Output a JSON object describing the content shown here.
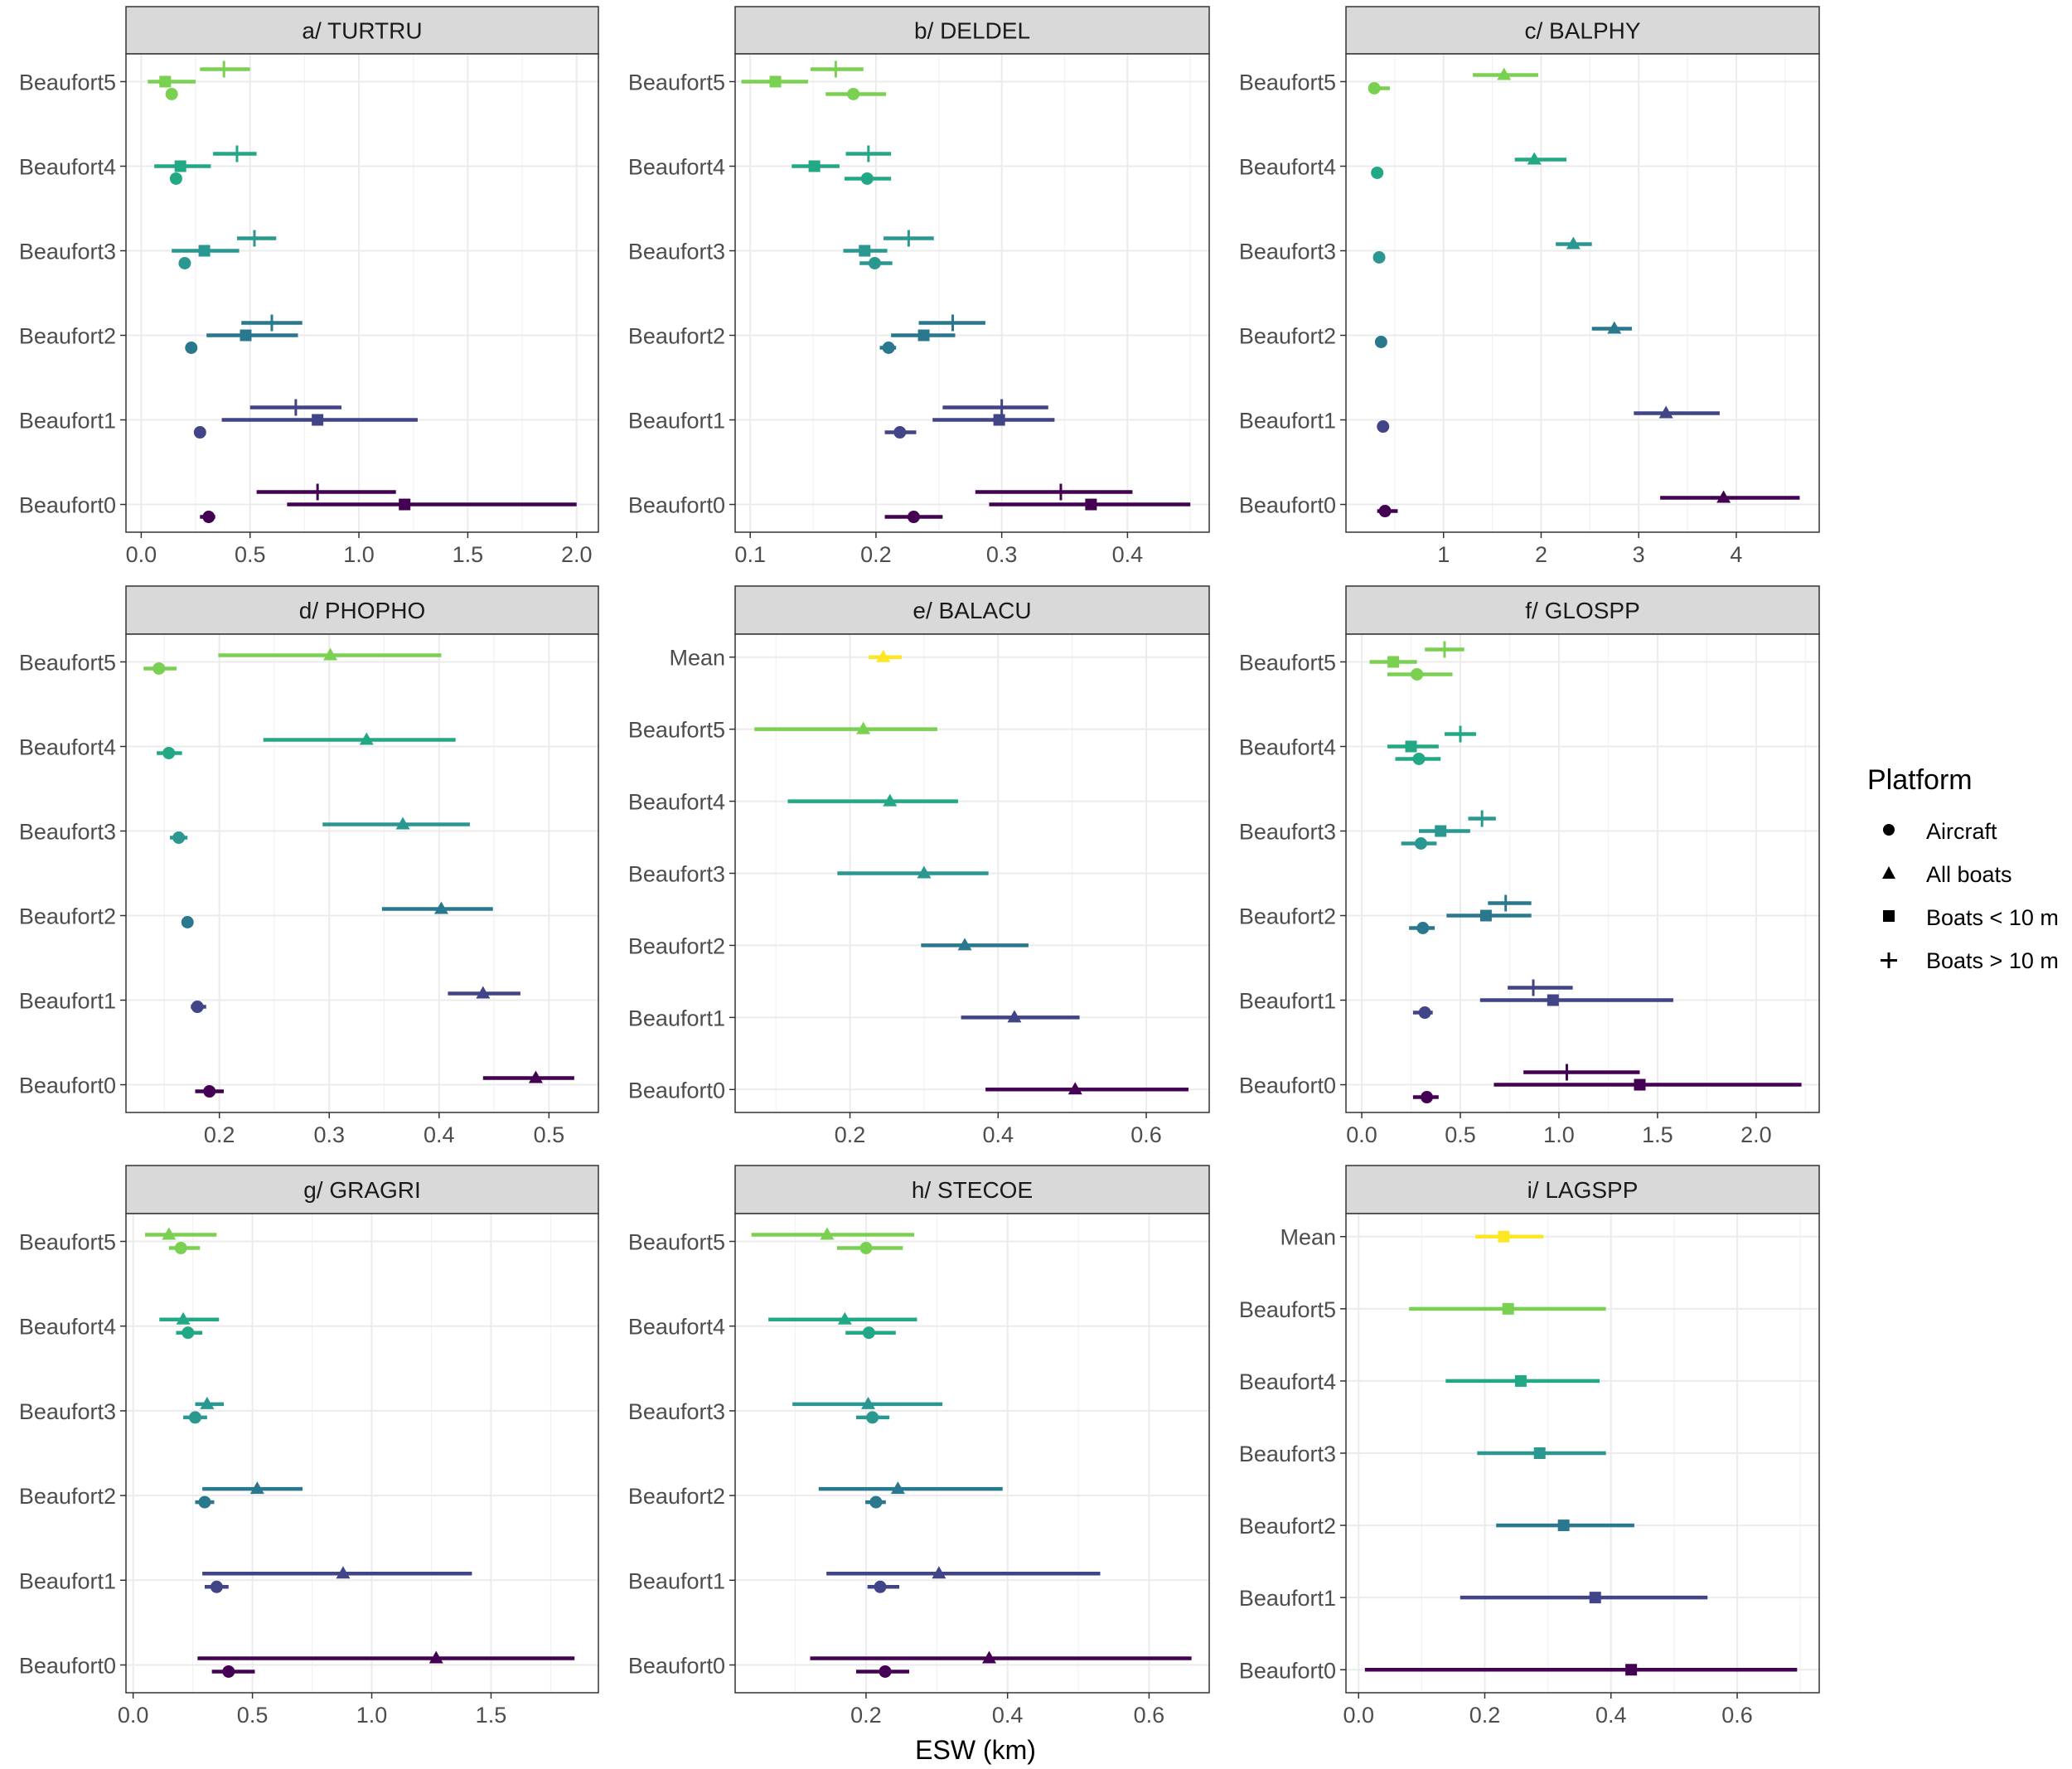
{
  "figure": {
    "xlabel": "ESW (km)",
    "legend": {
      "title": "Platform",
      "entries": [
        {
          "label": "Aircraft",
          "shape": "circle"
        },
        {
          "label": "All boats",
          "shape": "triangle"
        },
        {
          "label": "Boats < 10 m",
          "shape": "square"
        },
        {
          "label": "Boats > 10 m",
          "shape": "plus"
        }
      ]
    },
    "colors": {
      "Mean": "#FDE725",
      "Beaufort5": "#7AD151",
      "Beaufort4": "#22A884",
      "Beaufort3": "#2A9890",
      "Beaufort2": "#2A788E",
      "Beaufort1": "#414487",
      "Beaufort0": "#440154",
      "panel_strip": "#D9D9D9",
      "grid": "#EBEBEB"
    }
  },
  "chart_data": [
    {
      "title": "a/ TURTRU",
      "type": "scatter",
      "categories": [
        "Beaufort5",
        "Beaufort4",
        "Beaufort3",
        "Beaufort2",
        "Beaufort1",
        "Beaufort0"
      ],
      "xlim": [
        -0.07,
        2.1
      ],
      "xticks": [
        0,
        0.5,
        1,
        1.5,
        2
      ],
      "xtick_labels": [
        "0.0",
        "0.5",
        "1.0",
        "1.5",
        "2.0"
      ],
      "series": [
        {
          "name": "Boats > 10 m",
          "values": [
            [
              0.38,
              0.27,
              0.5
            ],
            [
              0.44,
              0.33,
              0.53
            ],
            [
              0.52,
              0.44,
              0.62
            ],
            [
              0.6,
              0.46,
              0.74
            ],
            [
              0.71,
              0.5,
              0.92
            ],
            [
              0.81,
              0.53,
              1.17
            ]
          ]
        },
        {
          "name": "Boats < 10 m",
          "values": [
            [
              0.11,
              0.03,
              0.25
            ],
            [
              0.18,
              0.06,
              0.32
            ],
            [
              0.29,
              0.14,
              0.45
            ],
            [
              0.48,
              0.3,
              0.72
            ],
            [
              0.81,
              0.37,
              1.27
            ],
            [
              1.21,
              0.67,
              2.0
            ]
          ]
        },
        {
          "name": "Aircraft",
          "values": [
            [
              0.14,
              0.12,
              0.16
            ],
            [
              0.16,
              0.15,
              0.18
            ],
            [
              0.2,
              0.19,
              0.21
            ],
            [
              0.23,
              0.22,
              0.24
            ],
            [
              0.27,
              0.26,
              0.28
            ],
            [
              0.31,
              0.27,
              0.34
            ]
          ]
        }
      ]
    },
    {
      "title": "b/ DELDEL",
      "type": "scatter",
      "categories": [
        "Beaufort5",
        "Beaufort4",
        "Beaufort3",
        "Beaufort2",
        "Beaufort1",
        "Beaufort0"
      ],
      "xlim": [
        0.088,
        0.465
      ],
      "xticks": [
        0.1,
        0.2,
        0.3,
        0.4
      ],
      "xtick_labels": [
        "0.1",
        "0.2",
        "0.3",
        "0.4"
      ],
      "series": [
        {
          "name": "Boats > 10 m",
          "values": [
            [
              0.168,
              0.148,
              0.19
            ],
            [
              0.194,
              0.176,
              0.212
            ],
            [
              0.226,
              0.206,
              0.246
            ],
            [
              0.261,
              0.234,
              0.287
            ],
            [
              0.3,
              0.253,
              0.337
            ],
            [
              0.347,
              0.279,
              0.404
            ]
          ]
        },
        {
          "name": "Boats < 10 m",
          "values": [
            [
              0.12,
              0.093,
              0.146
            ],
            [
              0.151,
              0.133,
              0.171
            ],
            [
              0.191,
              0.174,
              0.209
            ],
            [
              0.238,
              0.212,
              0.263
            ],
            [
              0.298,
              0.245,
              0.342
            ],
            [
              0.371,
              0.29,
              0.45
            ]
          ]
        },
        {
          "name": "Aircraft",
          "values": [
            [
              0.182,
              0.16,
              0.208
            ],
            [
              0.193,
              0.175,
              0.212
            ],
            [
              0.199,
              0.187,
              0.213
            ],
            [
              0.21,
              0.203,
              0.216
            ],
            [
              0.219,
              0.207,
              0.232
            ],
            [
              0.23,
              0.207,
              0.253
            ]
          ]
        }
      ]
    },
    {
      "title": "c/ BALPHY",
      "type": "scatter",
      "categories": [
        "Beaufort5",
        "Beaufort4",
        "Beaufort3",
        "Beaufort2",
        "Beaufort1",
        "Beaufort0"
      ],
      "xlim": [
        0.0,
        4.85
      ],
      "xticks": [
        1,
        2,
        3,
        4
      ],
      "xtick_labels": [
        "1",
        "2",
        "3",
        "4"
      ],
      "series": [
        {
          "name": "All boats",
          "values": [
            [
              1.62,
              1.3,
              1.97
            ],
            [
              1.93,
              1.73,
              2.26
            ],
            [
              2.33,
              2.15,
              2.52
            ],
            [
              2.75,
              2.52,
              2.93
            ],
            [
              3.28,
              2.95,
              3.83
            ],
            [
              3.87,
              3.22,
              4.65
            ]
          ]
        },
        {
          "name": "Aircraft",
          "values": [
            [
              0.29,
              0.23,
              0.45
            ],
            [
              0.32,
              0.28,
              0.38
            ],
            [
              0.34,
              0.33,
              0.36
            ],
            [
              0.36,
              0.35,
              0.37
            ],
            [
              0.38,
              0.33,
              0.42
            ],
            [
              0.4,
              0.32,
              0.53
            ]
          ]
        }
      ]
    },
    {
      "title": "d/ PHOPHO",
      "type": "scatter",
      "categories": [
        "Beaufort5",
        "Beaufort4",
        "Beaufort3",
        "Beaufort2",
        "Beaufort1",
        "Beaufort0"
      ],
      "xlim": [
        0.115,
        0.545
      ],
      "xticks": [
        0.2,
        0.3,
        0.4,
        0.5
      ],
      "xtick_labels": [
        "0.2",
        "0.3",
        "0.4",
        "0.5"
      ],
      "series": [
        {
          "name": "All boats",
          "values": [
            [
              0.301,
              0.199,
              0.402
            ],
            [
              0.334,
              0.24,
              0.415
            ],
            [
              0.367,
              0.294,
              0.428
            ],
            [
              0.402,
              0.348,
              0.449
            ],
            [
              0.44,
              0.408,
              0.474
            ],
            [
              0.488,
              0.44,
              0.523
            ]
          ]
        },
        {
          "name": "Aircraft",
          "values": [
            [
              0.145,
              0.131,
              0.161
            ],
            [
              0.154,
              0.143,
              0.166
            ],
            [
              0.163,
              0.155,
              0.171
            ],
            [
              0.171,
              0.166,
              0.176
            ],
            [
              0.18,
              0.174,
              0.188
            ],
            [
              0.191,
              0.178,
              0.204
            ]
          ]
        }
      ]
    },
    {
      "title": "e/ BALACU",
      "type": "scatter",
      "categories": [
        "Mean",
        "Beaufort5",
        "Beaufort4",
        "Beaufort3",
        "Beaufort2",
        "Beaufort1",
        "Beaufort0"
      ],
      "xlim": [
        0.045,
        0.685
      ],
      "xticks": [
        0.2,
        0.4,
        0.6
      ],
      "xtick_labels": [
        "0.2",
        "0.4",
        "0.6"
      ],
      "series": [
        {
          "name": "All boats",
          "values": [
            [
              0.245,
              0.225,
              0.27
            ],
            [
              0.218,
              0.071,
              0.318
            ],
            [
              0.254,
              0.116,
              0.346
            ],
            [
              0.3,
              0.183,
              0.387
            ],
            [
              0.355,
              0.296,
              0.441
            ],
            [
              0.422,
              0.35,
              0.51
            ],
            [
              0.504,
              0.383,
              0.657
            ]
          ]
        }
      ]
    },
    {
      "title": "f/ GLOSPP",
      "type": "scatter",
      "categories": [
        "Beaufort5",
        "Beaufort4",
        "Beaufort3",
        "Beaufort2",
        "Beaufort1",
        "Beaufort0"
      ],
      "xlim": [
        -0.08,
        2.32
      ],
      "xticks": [
        0,
        0.5,
        1,
        1.5,
        2
      ],
      "xtick_labels": [
        "0.0",
        "0.5",
        "1.0",
        "1.5",
        "2.0"
      ],
      "series": [
        {
          "name": "Boats > 10 m",
          "values": [
            [
              0.42,
              0.32,
              0.52
            ],
            [
              0.5,
              0.42,
              0.58
            ],
            [
              0.61,
              0.54,
              0.68
            ],
            [
              0.73,
              0.64,
              0.86
            ],
            [
              0.87,
              0.74,
              1.07
            ],
            [
              1.04,
              0.82,
              1.41
            ]
          ]
        },
        {
          "name": "Boats < 10 m",
          "values": [
            [
              0.16,
              0.04,
              0.28
            ],
            [
              0.25,
              0.13,
              0.39
            ],
            [
              0.4,
              0.29,
              0.55
            ],
            [
              0.63,
              0.43,
              0.86
            ],
            [
              0.97,
              0.6,
              1.58
            ],
            [
              1.41,
              0.67,
              2.23
            ]
          ]
        },
        {
          "name": "Aircraft",
          "values": [
            [
              0.28,
              0.13,
              0.46
            ],
            [
              0.29,
              0.17,
              0.4
            ],
            [
              0.3,
              0.2,
              0.38
            ],
            [
              0.31,
              0.24,
              0.37
            ],
            [
              0.32,
              0.26,
              0.36
            ],
            [
              0.33,
              0.26,
              0.39
            ]
          ]
        }
      ]
    },
    {
      "title": "g/ GRAGRI",
      "type": "scatter",
      "categories": [
        "Beaufort5",
        "Beaufort4",
        "Beaufort3",
        "Beaufort2",
        "Beaufort1",
        "Beaufort0"
      ],
      "xlim": [
        -0.03,
        1.95
      ],
      "xticks": [
        0,
        0.5,
        1,
        1.5
      ],
      "xtick_labels": [
        "0.0",
        "0.5",
        "1.0",
        "1.5"
      ],
      "series": [
        {
          "name": "All boats",
          "values": [
            [
              0.15,
              0.05,
              0.35
            ],
            [
              0.21,
              0.11,
              0.36
            ],
            [
              0.31,
              0.26,
              0.38
            ],
            [
              0.52,
              0.29,
              0.71
            ],
            [
              0.88,
              0.29,
              1.42
            ],
            [
              1.27,
              0.27,
              1.85
            ]
          ]
        },
        {
          "name": "Aircraft",
          "values": [
            [
              0.2,
              0.15,
              0.28
            ],
            [
              0.23,
              0.18,
              0.29
            ],
            [
              0.26,
              0.21,
              0.31
            ],
            [
              0.3,
              0.26,
              0.34
            ],
            [
              0.35,
              0.3,
              0.4
            ],
            [
              0.4,
              0.33,
              0.51
            ]
          ]
        }
      ]
    },
    {
      "title": "h/ STECOE",
      "type": "scatter",
      "categories": [
        "Beaufort5",
        "Beaufort4",
        "Beaufort3",
        "Beaufort2",
        "Beaufort1",
        "Beaufort0"
      ],
      "xlim": [
        0.015,
        0.685
      ],
      "xticks": [
        0.2,
        0.4,
        0.6
      ],
      "xtick_labels": [
        "0.2",
        "0.4",
        "0.6"
      ],
      "series": [
        {
          "name": "All boats",
          "values": [
            [
              0.145,
              0.038,
              0.268
            ],
            [
              0.17,
              0.062,
              0.272
            ],
            [
              0.203,
              0.096,
              0.308
            ],
            [
              0.245,
              0.133,
              0.393
            ],
            [
              0.303,
              0.144,
              0.531
            ],
            [
              0.374,
              0.121,
              0.66
            ]
          ]
        },
        {
          "name": "Aircraft",
          "values": [
            [
              0.2,
              0.159,
              0.252
            ],
            [
              0.204,
              0.171,
              0.242
            ],
            [
              0.209,
              0.186,
              0.233
            ],
            [
              0.214,
              0.199,
              0.228
            ],
            [
              0.22,
              0.202,
              0.247
            ],
            [
              0.227,
              0.186,
              0.261
            ]
          ]
        }
      ]
    },
    {
      "title": "i/ LAGSPP",
      "type": "scatter",
      "categories": [
        "Mean",
        "Beaufort5",
        "Beaufort4",
        "Beaufort3",
        "Beaufort2",
        "Beaufort1",
        "Beaufort0"
      ],
      "xlim": [
        -0.02,
        0.73
      ],
      "xticks": [
        0,
        0.2,
        0.4,
        0.6
      ],
      "xtick_labels": [
        "0.0",
        "0.2",
        "0.4",
        "0.6"
      ],
      "series": [
        {
          "name": "Boats < 10 m",
          "values": [
            [
              0.23,
              0.185,
              0.293
            ],
            [
              0.237,
              0.08,
              0.392
            ],
            [
              0.257,
              0.138,
              0.382
            ],
            [
              0.287,
              0.188,
              0.392
            ],
            [
              0.325,
              0.218,
              0.437
            ],
            [
              0.375,
              0.161,
              0.553
            ],
            [
              0.432,
              0.01,
              0.695
            ]
          ]
        }
      ]
    }
  ]
}
